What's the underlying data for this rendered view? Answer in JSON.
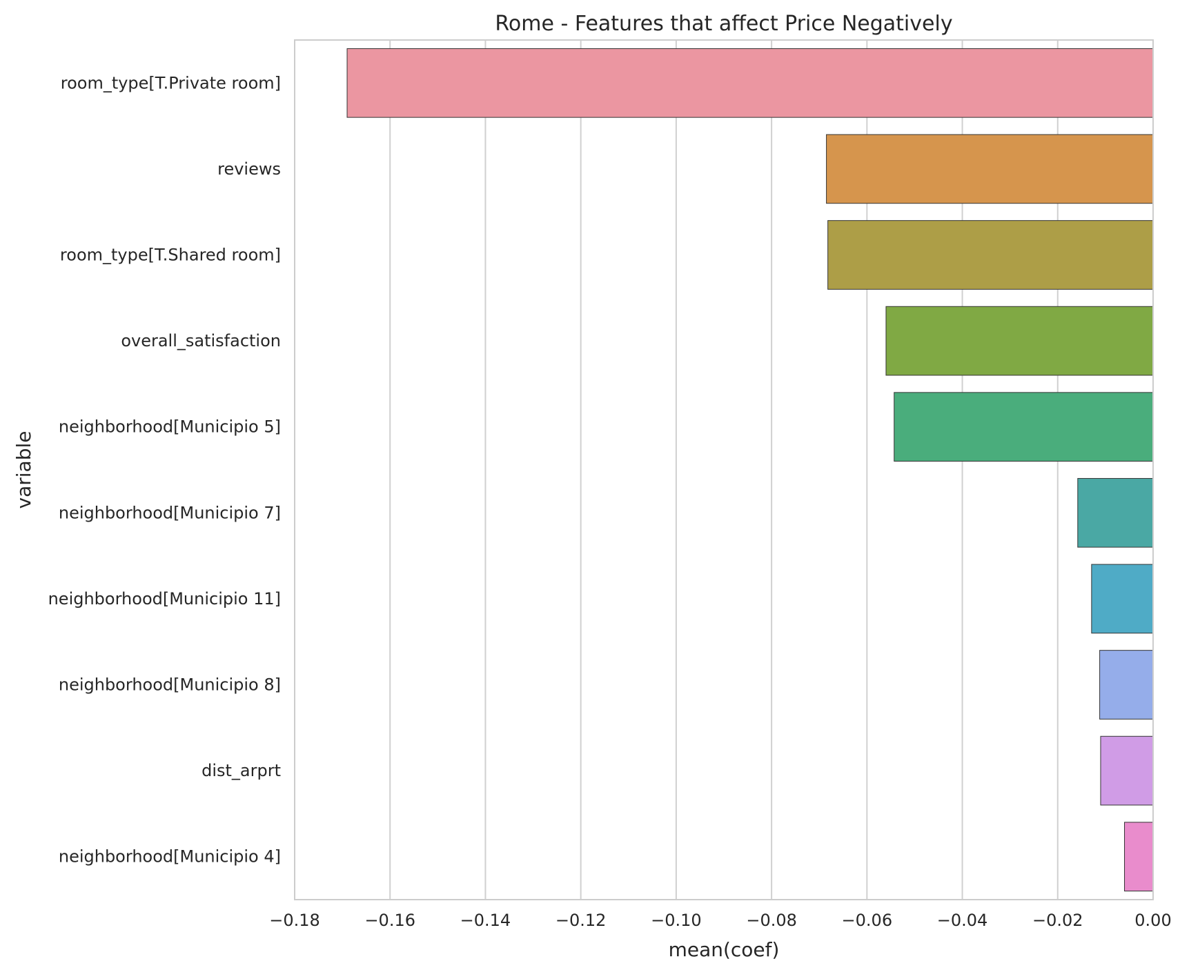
{
  "chart_data": {
    "type": "bar",
    "orientation": "horizontal",
    "title": "Rome - Features that affect Price Negatively",
    "xlabel": "mean(coef)",
    "ylabel": "variable",
    "xlim": [
      -0.18,
      0.0
    ],
    "xticks": [
      "−0.18",
      "−0.16",
      "−0.14",
      "−0.12",
      "−0.10",
      "−0.08",
      "−0.06",
      "−0.04",
      "−0.02",
      "0.00"
    ],
    "xtick_values": [
      -0.18,
      -0.16,
      -0.14,
      -0.12,
      -0.1,
      -0.08,
      -0.06,
      -0.04,
      -0.02,
      0.0
    ],
    "grid": "vertical",
    "categories": [
      "room_type[T.Private room]",
      "reviews",
      "room_type[T.Shared room]",
      "overall_satisfaction",
      "neighborhood[Municipio 5]",
      "neighborhood[Municipio 7]",
      "neighborhood[Municipio 11]",
      "neighborhood[Municipio 8]",
      "dist_arprt",
      "neighborhood[Municipio 4]"
    ],
    "values": [
      -0.169,
      -0.0685,
      -0.0682,
      -0.056,
      -0.0543,
      -0.0158,
      -0.0129,
      -0.0112,
      -0.011,
      -0.006
    ],
    "colors": [
      "#eb96a1",
      "#d6954d",
      "#ad9e47",
      "#80a944",
      "#4aad7c",
      "#4aa8a4",
      "#4fabc6",
      "#95adea",
      "#d09ce6",
      "#e98ccc"
    ]
  }
}
